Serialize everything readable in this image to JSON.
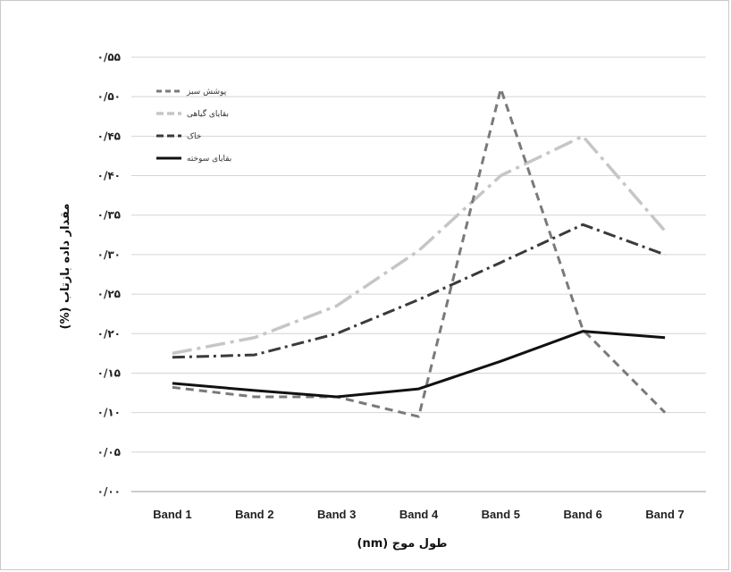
{
  "chart_data": {
    "type": "line",
    "title": "",
    "xlabel": "طول موج (nm)",
    "ylabel": "مقدار داده بازتاب (%)",
    "categories": [
      "Band 1",
      "Band 2",
      "Band 3",
      "Band 4",
      "Band 5",
      "Band 6",
      "Band 7"
    ],
    "ylim": [
      0,
      0.55
    ],
    "yticks": [
      0,
      0.05,
      0.1,
      0.15,
      0.2,
      0.25,
      0.3,
      0.35,
      0.4,
      0.45,
      0.5,
      0.55
    ],
    "ytick_labels": [
      "۰/۰۰",
      "۰/۰۵",
      "۰/۱۰",
      "۰/۱۵",
      "۰/۲۰",
      "۰/۲۵",
      "۰/۳۰",
      "۰/۳۵",
      "۰/۴۰",
      "۰/۴۵",
      "۰/۵۰",
      "۰/۵۵"
    ],
    "grid": true,
    "legend_position": "top-left",
    "series": [
      {
        "name": "پوشش سبز",
        "style": "dashed",
        "color": "#7a7a7a",
        "values": [
          0.132,
          0.12,
          0.12,
          0.095,
          0.51,
          0.205,
          0.1
        ]
      },
      {
        "name": "بقایای گیاهی",
        "style": "dash-dot-long",
        "color": "#c6c6c6",
        "values": [
          0.175,
          0.195,
          0.235,
          0.305,
          0.4,
          0.45,
          0.33
        ]
      },
      {
        "name": "خاک",
        "style": "dash-dot",
        "color": "#3a3a3a",
        "values": [
          0.17,
          0.173,
          0.2,
          0.243,
          0.29,
          0.338,
          0.3
        ]
      },
      {
        "name": "بقایای سوخته",
        "style": "solid",
        "color": "#111111",
        "values": [
          0.137,
          0.128,
          0.12,
          0.13,
          0.165,
          0.203,
          0.195
        ]
      }
    ]
  }
}
